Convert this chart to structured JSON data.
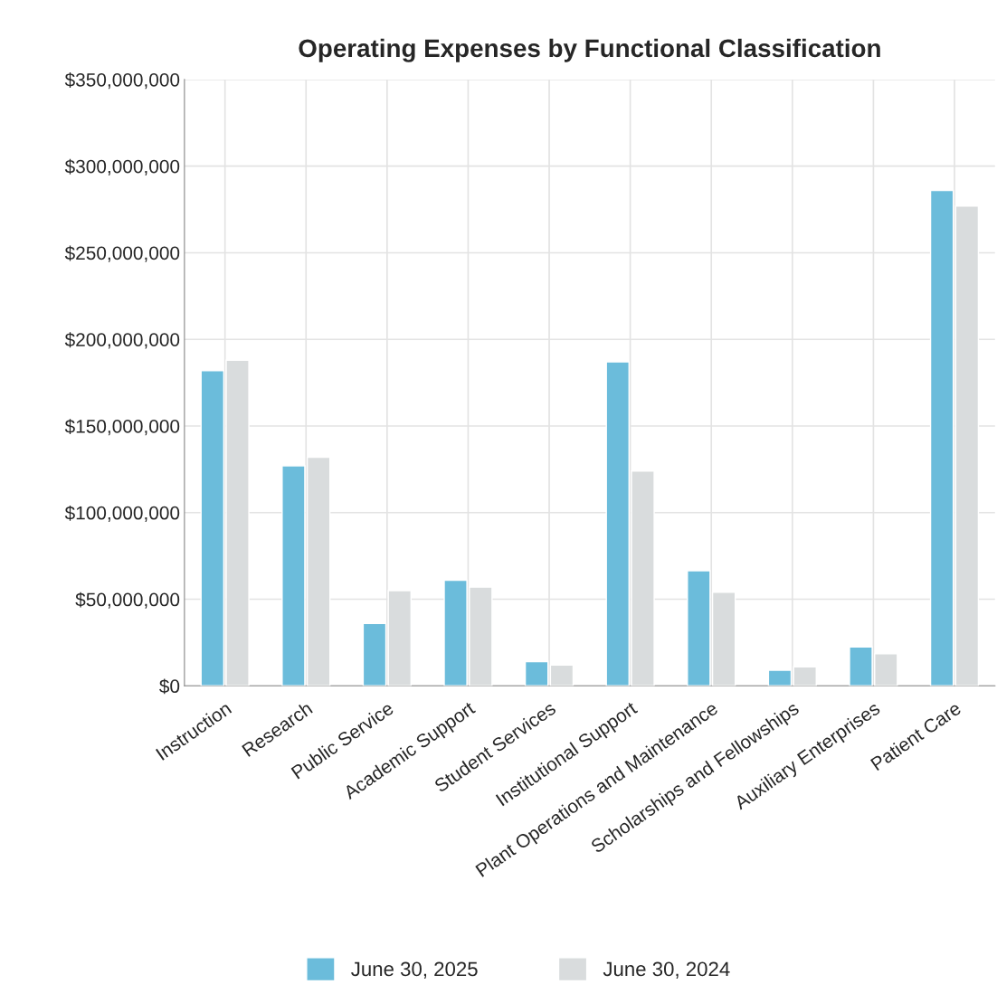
{
  "chart_data": {
    "type": "bar",
    "title": "Operating Expenses by Functional Classification",
    "categories": [
      "Instruction",
      "Research",
      "Public Service",
      "Academic Support",
      "Student Services",
      "Institutional Support",
      "Plant Operations and Maintenance",
      "Scholarships and Fellowships",
      "Auxiliary Enterprises",
      "Patient Care"
    ],
    "series": [
      {
        "name": "June 30, 2025",
        "color": "#6bbcdb",
        "values": [
          182000000,
          127000000,
          36000000,
          61000000,
          14000000,
          187000000,
          66500000,
          9000000,
          22500000,
          286000000
        ]
      },
      {
        "name": "June 30, 2024",
        "color": "#d9dcdd",
        "values": [
          188000000,
          132000000,
          55000000,
          57000000,
          12000000,
          124000000,
          54000000,
          11000000,
          18500000,
          277000000
        ]
      }
    ],
    "ylim": [
      0,
      350000000
    ],
    "yticks": [
      {
        "value": 0,
        "label": "$0"
      },
      {
        "value": 50000000,
        "label": "$50,000,000"
      },
      {
        "value": 100000000,
        "label": "$100,000,000"
      },
      {
        "value": 150000000,
        "label": "$150,000,000"
      },
      {
        "value": 200000000,
        "label": "$200,000,000"
      },
      {
        "value": 250000000,
        "label": "$250,000,000"
      },
      {
        "value": 300000000,
        "label": "$300,000,000"
      },
      {
        "value": 350000000,
        "label": "$350,000,000"
      }
    ],
    "grid": true,
    "legend": "bottom"
  }
}
